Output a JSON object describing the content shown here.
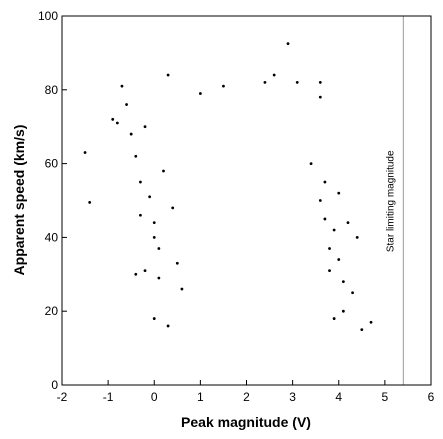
{
  "chart_data": {
    "type": "scatter",
    "xlabel": "Peak magnitude (V)",
    "ylabel": "Apparent speed (km/s)",
    "xlim": [
      -2,
      6
    ],
    "ylim": [
      0,
      100
    ],
    "xticks": [
      -2,
      -1,
      0,
      1,
      2,
      3,
      4,
      5,
      6
    ],
    "yticks": [
      0,
      20,
      40,
      60,
      80,
      100
    ],
    "grid": false,
    "colors": {
      "points": "#000000",
      "reference_line": "#999999"
    },
    "annotation": {
      "text": "Star limiting magnitude",
      "x": 5.4
    },
    "series": [
      {
        "points": [
          [
            -1.5,
            63.0
          ],
          [
            -1.4,
            49.5
          ],
          [
            -0.7,
            81.0
          ],
          [
            -0.8,
            71.0
          ],
          [
            -0.9,
            72.0
          ],
          [
            -0.6,
            76.0
          ],
          [
            -0.5,
            68.0
          ],
          [
            -0.4,
            62.0
          ],
          [
            -0.3,
            55.0
          ],
          [
            -0.2,
            70.0
          ],
          [
            -0.2,
            31.0
          ],
          [
            0.0,
            40.0
          ],
          [
            0.0,
            18.0
          ],
          [
            0.3,
            84.0
          ],
          [
            0.3,
            16.0
          ],
          [
            1.0,
            79.0
          ],
          [
            1.5,
            81.0
          ],
          [
            2.4,
            82.0
          ],
          [
            2.6,
            84.0
          ],
          [
            2.9,
            92.5
          ],
          [
            3.1,
            82.0
          ],
          [
            3.6,
            82.0
          ],
          [
            3.6,
            78.0
          ],
          [
            4.2,
            44.0
          ],
          [
            4.4,
            40.0
          ],
          [
            4.0,
            52.0
          ],
          [
            4.7,
            17.0
          ],
          [
            4.5,
            15.0
          ],
          [
            4.1,
            20.0
          ],
          [
            3.9,
            18.0
          ],
          [
            0.0,
            44.0
          ],
          [
            -0.1,
            51.0
          ],
          [
            0.4,
            48.0
          ],
          [
            0.2,
            58.0
          ],
          [
            -0.3,
            46.0
          ],
          [
            0.1,
            37.0
          ],
          [
            0.1,
            29.0
          ],
          [
            -0.4,
            30.0
          ],
          [
            0.5,
            33.0
          ],
          [
            0.6,
            26.0
          ],
          [
            3.8,
            37.0
          ],
          [
            4.0,
            34.0
          ],
          [
            3.8,
            31.0
          ],
          [
            4.1,
            28.0
          ],
          [
            4.3,
            25.0
          ],
          [
            3.7,
            45.0
          ],
          [
            3.6,
            50.0
          ],
          [
            3.9,
            42.0
          ],
          [
            3.7,
            55.0
          ],
          [
            3.4,
            60.0
          ]
        ]
      }
    ]
  }
}
